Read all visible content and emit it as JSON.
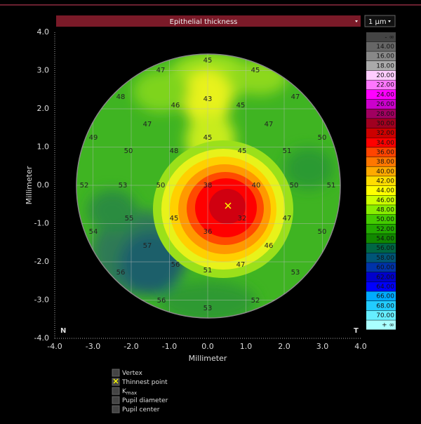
{
  "header": {
    "map_selector": "Epithelial thickness",
    "step_selector": "1 µm"
  },
  "plot": {
    "x_axis_label": "Millimeter",
    "y_axis_label": "Millimeter",
    "x_ticks": [
      "-4.0",
      "-3.0",
      "-2.0",
      "-1.0",
      "0.0",
      "1.0",
      "2.0",
      "3.0",
      "4.0"
    ],
    "y_ticks": [
      "4.0",
      "3.0",
      "2.0",
      "1.0",
      "0.0",
      "-1.0",
      "-2.0",
      "-3.0",
      "-4.0"
    ],
    "corner_left": "N",
    "corner_right": "T",
    "values": [
      "47",
      "45",
      "45",
      "48",
      "43",
      "46",
      "45",
      "47",
      "47",
      "47",
      "49",
      "45",
      "50",
      "50",
      "48",
      "45",
      "51",
      "52",
      "53",
      "50",
      "38",
      "40",
      "50",
      "51",
      "55",
      "45",
      "32",
      "47",
      "54",
      "36",
      "50",
      "57",
      "46",
      "56",
      "51",
      "47",
      "56",
      "53",
      "56",
      "52",
      "53"
    ]
  },
  "scale": {
    "labels": [
      "- ∞",
      "14.00",
      "16.00",
      "18.00",
      "20.00",
      "22.00",
      "24.00",
      "26.00",
      "28.00",
      "30.00",
      "32.00",
      "34.00",
      "36.00",
      "38.00",
      "40.00",
      "42.00",
      "44.00",
      "46.00",
      "48.00",
      "50.00",
      "52.00",
      "54.00",
      "56.00",
      "58.00",
      "60.00",
      "62.00",
      "64.00",
      "66.00",
      "68.00",
      "70.00",
      "+ ∞"
    ]
  },
  "legend": {
    "items": [
      {
        "text": "Vertex"
      },
      {
        "text": "Thinnest point"
      },
      {
        "text": "K",
        "subscript": "max"
      },
      {
        "text": "Pupil diameter"
      },
      {
        "text": "Pupil center"
      }
    ]
  }
}
